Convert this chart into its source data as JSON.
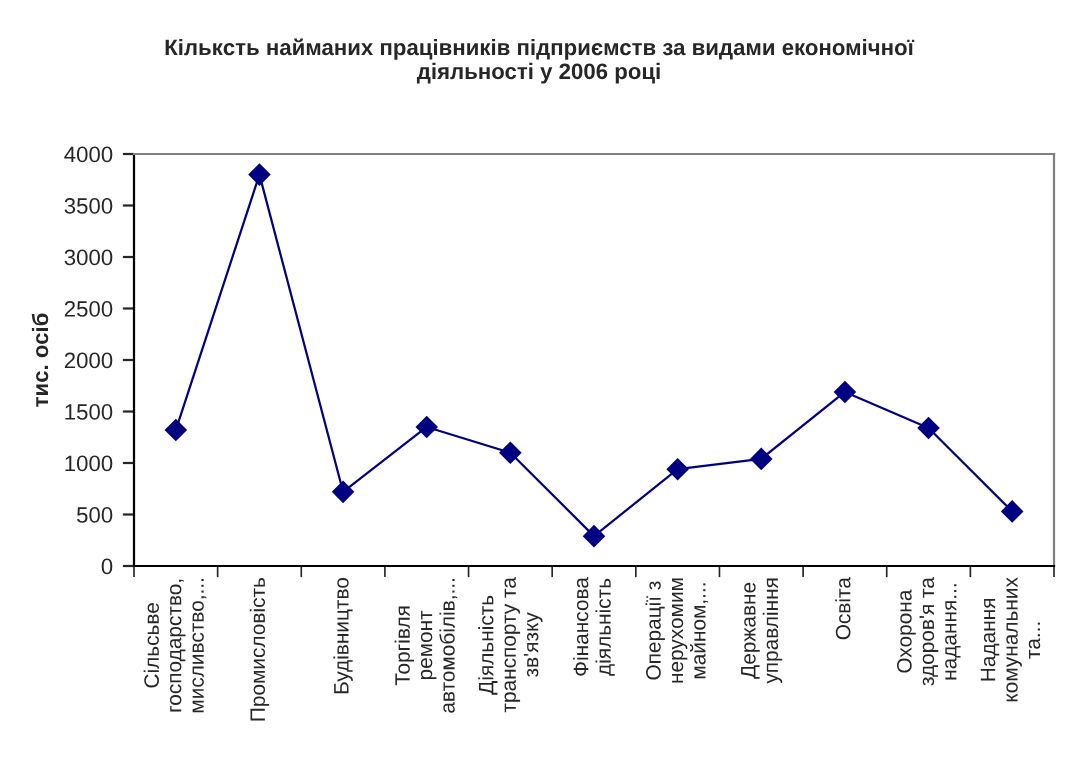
{
  "chart_data": {
    "type": "line",
    "title": "Кількcть найманих працівників підприємств за видами економічної\nдіяльності у 2006 році",
    "ylabel": "тис. осіб",
    "categories": [
      "Сільсьве\nгосподарство,\nмисливство,...",
      "Промисловість",
      "Будівництво",
      "Торгівля\nремонт\nавтомобілів,...",
      "Діяльність\nтранспорту та\nзв'язку",
      "Фінансова\nдіяльність",
      "Операції з\nнерухомим\nмайном,...",
      "Державне\nуправління",
      "Освіта",
      "Охорона\nздоров'я та\nнадання...",
      "Надання\nкомунальних\nта..."
    ],
    "series": [
      {
        "color": "#000080",
        "values": [
          1320,
          3800,
          720,
          1350,
          1100,
          290,
          940,
          1040,
          1690,
          1340,
          530
        ]
      }
    ],
    "ylim": [
      0,
      4000
    ],
    "yticks": [
      0,
      500,
      1000,
      1500,
      2000,
      2500,
      3000,
      3500,
      4000
    ],
    "marker": "diamond",
    "line_style": "solid",
    "grid": false,
    "legend": false
  }
}
